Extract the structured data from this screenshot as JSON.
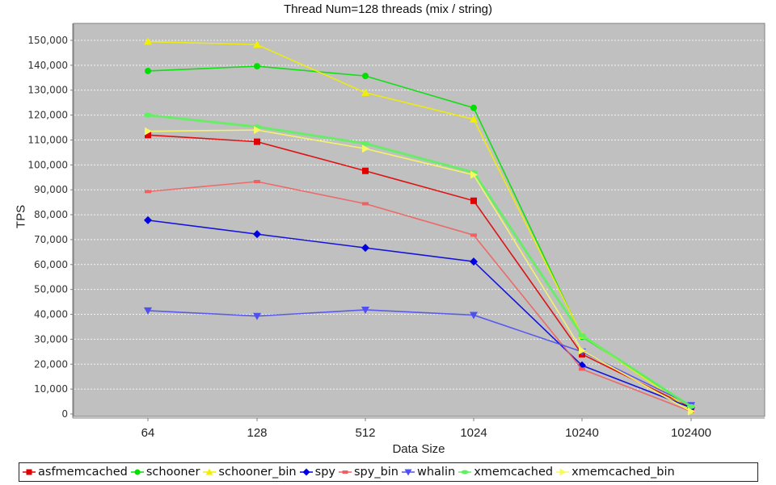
{
  "chart_data": {
    "type": "line",
    "title": "Thread Num=128 threads (mix / string)",
    "xlabel": "Data Size",
    "ylabel": "TPS",
    "categories": [
      "64",
      "128",
      "512",
      "1024",
      "10240",
      "102400"
    ],
    "ylim": [
      0,
      150000
    ],
    "yticks": [
      "0",
      "10,000",
      "20,000",
      "30,000",
      "40,000",
      "50,000",
      "60,000",
      "70,000",
      "80,000",
      "90,000",
      "100,000",
      "110,000",
      "120,000",
      "130,000",
      "140,000",
      "150,000"
    ],
    "grid": true,
    "legend_position": "bottom",
    "series": [
      {
        "name": "asfmemcached",
        "color": "#e00000",
        "marker": "square",
        "values": [
          112000,
          109300,
          97600,
          85600,
          24000,
          2500
        ]
      },
      {
        "name": "schooner",
        "color": "#00e000",
        "marker": "circle",
        "values": [
          137700,
          139600,
          135700,
          122900,
          31000,
          3000
        ]
      },
      {
        "name": "schooner_bin",
        "color": "#f0f000",
        "marker": "triangle-up",
        "values": [
          149500,
          148300,
          129000,
          118300,
          31500,
          1500
        ]
      },
      {
        "name": "spy",
        "color": "#0000e0",
        "marker": "diamond",
        "values": [
          77800,
          72200,
          66700,
          61200,
          19500,
          2500
        ]
      },
      {
        "name": "spy_bin",
        "color": "#f06060",
        "marker": "rect-flat",
        "values": [
          89300,
          93300,
          84400,
          71800,
          18000,
          1000
        ]
      },
      {
        "name": "whalin",
        "color": "#5050f0",
        "marker": "triangle-down",
        "values": [
          41500,
          39300,
          41800,
          39700,
          25000,
          3500
        ]
      },
      {
        "name": "xmemcached",
        "color": "#60f060",
        "marker": "ellipse-flat",
        "values": [
          120000,
          115300,
          108600,
          97000,
          31500,
          3000
        ]
      },
      {
        "name": "xmemcached_bin",
        "color": "#f8f860",
        "marker": "triangle-right",
        "values": [
          113500,
          114000,
          106500,
          96000,
          25500,
          1000
        ]
      }
    ]
  },
  "legend": {
    "items": [
      "asfmemcached",
      "schooner",
      "schooner_bin",
      "spy",
      "spy_bin",
      "whalin",
      "xmemcached",
      "xmemcached_bin"
    ]
  }
}
